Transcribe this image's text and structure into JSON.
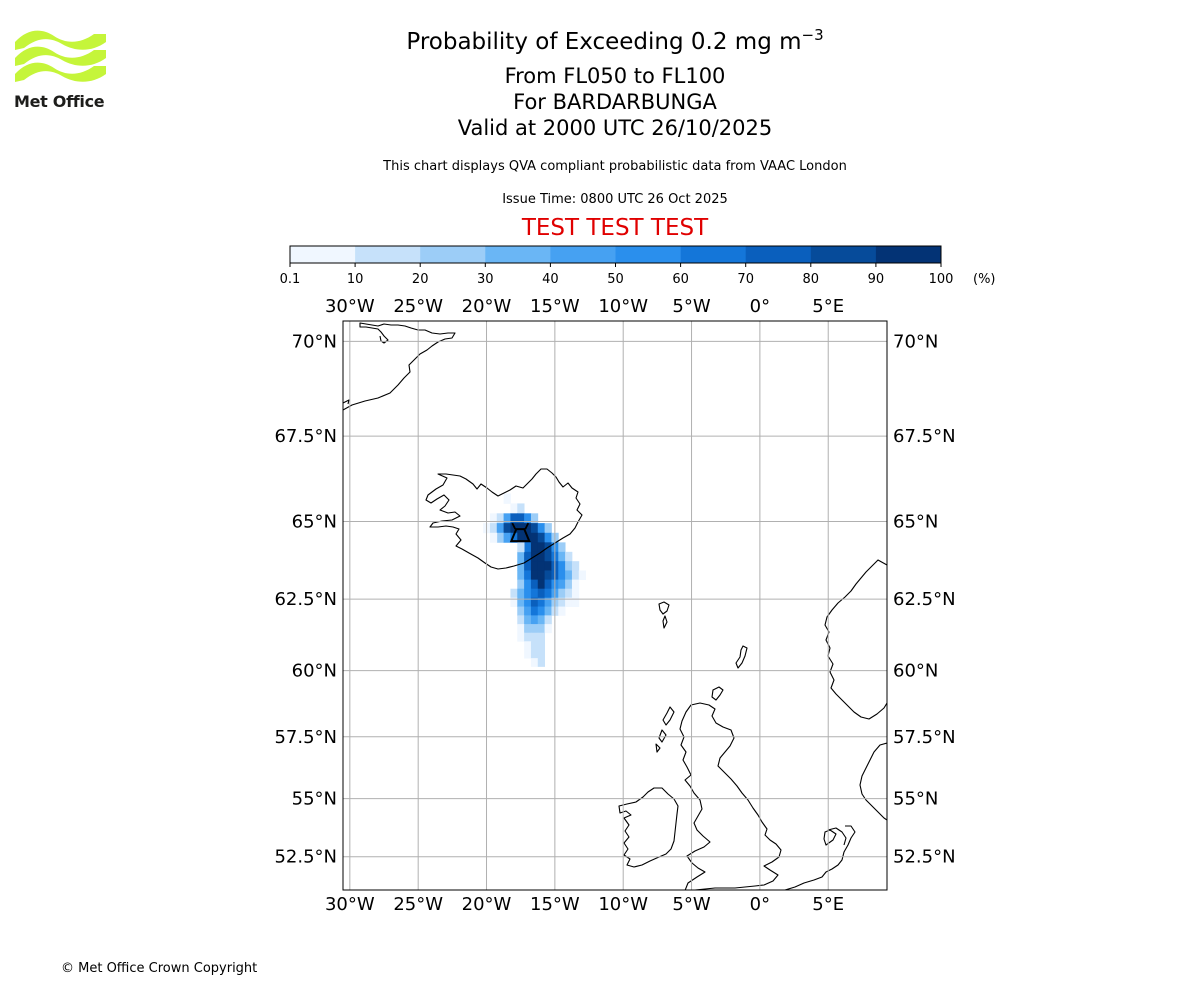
{
  "header": {
    "logo_text": "Met Office",
    "title_main": "Probability of Exceeding 0.2 mg m",
    "title_superscript": "−3",
    "level_range": "From FL050 to FL100",
    "volcano_line": "For BARDARBUNGA",
    "valid_line": "Valid at 2000 UTC 26/10/2025",
    "description": "This chart displays QVA compliant probabilistic data from VAAC London",
    "issue_time": "Issue Time: 0800 UTC 26 Oct 2025",
    "test_banner": "TEST TEST TEST"
  },
  "colorbar": {
    "tick_labels": [
      "0.1",
      "10",
      "20",
      "30",
      "40",
      "50",
      "60",
      "70",
      "80",
      "90",
      "100"
    ],
    "unit": "(%)",
    "colors": [
      "#f0f7ff",
      "#c6e1fa",
      "#9ccdf7",
      "#6ab6f5",
      "#46a1f2",
      "#2a8fed",
      "#1476d9",
      "#0a5fbd",
      "#064b9a",
      "#033375"
    ]
  },
  "map": {
    "lon_labels": [
      "30°W",
      "25°W",
      "20°W",
      "15°W",
      "10°W",
      "5°W",
      "0°",
      "5°E"
    ],
    "lat_labels": [
      "70°N",
      "67.5°N",
      "65°N",
      "62.5°N",
      "60°N",
      "57.5°N",
      "55°N",
      "52.5°N"
    ],
    "lon_values": [
      -30,
      -25,
      -20,
      -15,
      -10,
      -5,
      0,
      5
    ],
    "lat_values": [
      70,
      67.5,
      65,
      62.5,
      60,
      57.5,
      55,
      52.5
    ],
    "extent": {
      "lon_min": -30.5,
      "lon_max": 9.3,
      "lat_min": 51,
      "lat_max": 70.5
    },
    "volcano": {
      "name": "BARDARBUNGA",
      "lat": 64.64,
      "lon": -17.53,
      "icon": "volcano-icon"
    },
    "plume_cells": [
      {
        "lat": 65.4,
        "lon": -18.0,
        "p": 10
      },
      {
        "lat": 65.4,
        "lon": -17.5,
        "p": 20
      },
      {
        "lat": 65.1,
        "lon": -19.5,
        "p": 10
      },
      {
        "lat": 65.1,
        "lon": -19.0,
        "p": 20
      },
      {
        "lat": 65.1,
        "lon": -18.5,
        "p": 50
      },
      {
        "lat": 65.1,
        "lon": -18.0,
        "p": 80
      },
      {
        "lat": 65.1,
        "lon": -17.5,
        "p": 80
      },
      {
        "lat": 65.1,
        "lon": -17.0,
        "p": 60
      },
      {
        "lat": 65.1,
        "lon": -16.5,
        "p": 30
      },
      {
        "lat": 64.8,
        "lon": -20.0,
        "p": 10
      },
      {
        "lat": 64.8,
        "lon": -19.5,
        "p": 20
      },
      {
        "lat": 64.8,
        "lon": -19.0,
        "p": 50
      },
      {
        "lat": 64.8,
        "lon": -18.5,
        "p": 90
      },
      {
        "lat": 64.8,
        "lon": -18.0,
        "p": 100
      },
      {
        "lat": 64.8,
        "lon": -17.5,
        "p": 100
      },
      {
        "lat": 64.8,
        "lon": -17.0,
        "p": 100
      },
      {
        "lat": 64.8,
        "lon": -16.5,
        "p": 90
      },
      {
        "lat": 64.8,
        "lon": -16.0,
        "p": 60
      },
      {
        "lat": 64.8,
        "lon": -15.5,
        "p": 30
      },
      {
        "lat": 64.5,
        "lon": -19.0,
        "p": 30
      },
      {
        "lat": 64.5,
        "lon": -18.5,
        "p": 50
      },
      {
        "lat": 64.5,
        "lon": -18.0,
        "p": 70
      },
      {
        "lat": 64.5,
        "lon": -17.5,
        "p": 100
      },
      {
        "lat": 64.5,
        "lon": -17.0,
        "p": 100
      },
      {
        "lat": 64.5,
        "lon": -16.5,
        "p": 100
      },
      {
        "lat": 64.5,
        "lon": -16.0,
        "p": 90
      },
      {
        "lat": 64.5,
        "lon": -15.5,
        "p": 60
      },
      {
        "lat": 64.5,
        "lon": -15.0,
        "p": 30
      },
      {
        "lat": 64.2,
        "lon": -17.0,
        "p": 70
      },
      {
        "lat": 64.2,
        "lon": -16.5,
        "p": 100
      },
      {
        "lat": 64.2,
        "lon": -16.0,
        "p": 100
      },
      {
        "lat": 64.2,
        "lon": -15.5,
        "p": 90
      },
      {
        "lat": 64.2,
        "lon": -15.0,
        "p": 60
      },
      {
        "lat": 64.2,
        "lon": -14.5,
        "p": 30
      },
      {
        "lat": 63.9,
        "lon": -17.5,
        "p": 40
      },
      {
        "lat": 63.9,
        "lon": -17.0,
        "p": 80
      },
      {
        "lat": 63.9,
        "lon": -16.5,
        "p": 100
      },
      {
        "lat": 63.9,
        "lon": -16.0,
        "p": 100
      },
      {
        "lat": 63.9,
        "lon": -15.5,
        "p": 90
      },
      {
        "lat": 63.9,
        "lon": -15.0,
        "p": 70
      },
      {
        "lat": 63.9,
        "lon": -14.5,
        "p": 40
      },
      {
        "lat": 63.9,
        "lon": -14.0,
        "p": 20
      },
      {
        "lat": 63.6,
        "lon": -17.5,
        "p": 40
      },
      {
        "lat": 63.6,
        "lon": -17.0,
        "p": 80
      },
      {
        "lat": 63.6,
        "lon": -16.5,
        "p": 100
      },
      {
        "lat": 63.6,
        "lon": -16.0,
        "p": 100
      },
      {
        "lat": 63.6,
        "lon": -15.5,
        "p": 100
      },
      {
        "lat": 63.6,
        "lon": -15.0,
        "p": 80
      },
      {
        "lat": 63.6,
        "lon": -14.5,
        "p": 60
      },
      {
        "lat": 63.6,
        "lon": -14.0,
        "p": 30
      },
      {
        "lat": 63.6,
        "lon": -13.5,
        "p": 20
      },
      {
        "lat": 63.3,
        "lon": -17.5,
        "p": 40
      },
      {
        "lat": 63.3,
        "lon": -17.0,
        "p": 70
      },
      {
        "lat": 63.3,
        "lon": -16.5,
        "p": 100
      },
      {
        "lat": 63.3,
        "lon": -16.0,
        "p": 100
      },
      {
        "lat": 63.3,
        "lon": -15.5,
        "p": 90
      },
      {
        "lat": 63.3,
        "lon": -15.0,
        "p": 80
      },
      {
        "lat": 63.3,
        "lon": -14.5,
        "p": 60
      },
      {
        "lat": 63.3,
        "lon": -14.0,
        "p": 40
      },
      {
        "lat": 63.3,
        "lon": -13.5,
        "p": 20
      },
      {
        "lat": 63.3,
        "lon": -13.0,
        "p": 10
      },
      {
        "lat": 63.0,
        "lon": -17.5,
        "p": 30
      },
      {
        "lat": 63.0,
        "lon": -17.0,
        "p": 60
      },
      {
        "lat": 63.0,
        "lon": -16.5,
        "p": 80
      },
      {
        "lat": 63.0,
        "lon": -16.0,
        "p": 100
      },
      {
        "lat": 63.0,
        "lon": -15.5,
        "p": 80
      },
      {
        "lat": 63.0,
        "lon": -15.0,
        "p": 60
      },
      {
        "lat": 63.0,
        "lon": -14.5,
        "p": 50
      },
      {
        "lat": 63.0,
        "lon": -14.0,
        "p": 30
      },
      {
        "lat": 63.0,
        "lon": -13.5,
        "p": 10
      },
      {
        "lat": 62.7,
        "lon": -18.0,
        "p": 20
      },
      {
        "lat": 62.7,
        "lon": -17.5,
        "p": 40
      },
      {
        "lat": 62.7,
        "lon": -17.0,
        "p": 60
      },
      {
        "lat": 62.7,
        "lon": -16.5,
        "p": 70
      },
      {
        "lat": 62.7,
        "lon": -16.0,
        "p": 80
      },
      {
        "lat": 62.7,
        "lon": -15.5,
        "p": 70
      },
      {
        "lat": 62.7,
        "lon": -15.0,
        "p": 50
      },
      {
        "lat": 62.7,
        "lon": -14.5,
        "p": 30
      },
      {
        "lat": 62.7,
        "lon": -14.0,
        "p": 20
      },
      {
        "lat": 62.7,
        "lon": -13.5,
        "p": 10
      },
      {
        "lat": 62.4,
        "lon": -18.0,
        "p": 10
      },
      {
        "lat": 62.4,
        "lon": -17.5,
        "p": 40
      },
      {
        "lat": 62.4,
        "lon": -17.0,
        "p": 60
      },
      {
        "lat": 62.4,
        "lon": -16.5,
        "p": 80
      },
      {
        "lat": 62.4,
        "lon": -16.0,
        "p": 70
      },
      {
        "lat": 62.4,
        "lon": -15.5,
        "p": 50
      },
      {
        "lat": 62.4,
        "lon": -15.0,
        "p": 30
      },
      {
        "lat": 62.4,
        "lon": -14.5,
        "p": 20
      },
      {
        "lat": 62.4,
        "lon": -14.0,
        "p": 10
      },
      {
        "lat": 62.4,
        "lon": -13.5,
        "p": 10
      },
      {
        "lat": 62.1,
        "lon": -17.5,
        "p": 30
      },
      {
        "lat": 62.1,
        "lon": -17.0,
        "p": 50
      },
      {
        "lat": 62.1,
        "lon": -16.5,
        "p": 70
      },
      {
        "lat": 62.1,
        "lon": -16.0,
        "p": 60
      },
      {
        "lat": 62.1,
        "lon": -15.5,
        "p": 40
      },
      {
        "lat": 62.1,
        "lon": -15.0,
        "p": 20
      },
      {
        "lat": 62.1,
        "lon": -14.5,
        "p": 10
      },
      {
        "lat": 61.8,
        "lon": -17.5,
        "p": 20
      },
      {
        "lat": 61.8,
        "lon": -17.0,
        "p": 40
      },
      {
        "lat": 61.8,
        "lon": -16.5,
        "p": 50
      },
      {
        "lat": 61.8,
        "lon": -16.0,
        "p": 40
      },
      {
        "lat": 61.8,
        "lon": -15.5,
        "p": 20
      },
      {
        "lat": 61.5,
        "lon": -17.5,
        "p": 10
      },
      {
        "lat": 61.5,
        "lon": -17.0,
        "p": 30
      },
      {
        "lat": 61.5,
        "lon": -16.5,
        "p": 30
      },
      {
        "lat": 61.5,
        "lon": -16.0,
        "p": 30
      },
      {
        "lat": 61.5,
        "lon": -15.5,
        "p": 10
      },
      {
        "lat": 61.2,
        "lon": -17.5,
        "p": 10
      },
      {
        "lat": 61.2,
        "lon": -17.0,
        "p": 20
      },
      {
        "lat": 61.2,
        "lon": -16.5,
        "p": 20
      },
      {
        "lat": 61.2,
        "lon": -16.0,
        "p": 20
      },
      {
        "lat": 60.9,
        "lon": -17.0,
        "p": 10
      },
      {
        "lat": 60.9,
        "lon": -16.5,
        "p": 20
      },
      {
        "lat": 60.9,
        "lon": -16.0,
        "p": 20
      },
      {
        "lat": 60.6,
        "lon": -17.0,
        "p": 10
      },
      {
        "lat": 60.6,
        "lon": -16.5,
        "p": 20
      },
      {
        "lat": 60.6,
        "lon": -16.0,
        "p": 20
      },
      {
        "lat": 60.3,
        "lon": -16.5,
        "p": 10
      },
      {
        "lat": 60.3,
        "lon": -16.0,
        "p": 20
      },
      {
        "lat": 65.7,
        "lon": -18.5,
        "p": 10
      },
      {
        "lat": 64.5,
        "lon": -19.5,
        "p": 10
      },
      {
        "lat": 64.2,
        "lon": -17.5,
        "p": 20
      }
    ]
  },
  "footer": {
    "copyright": "© Met Office Crown Copyright"
  }
}
